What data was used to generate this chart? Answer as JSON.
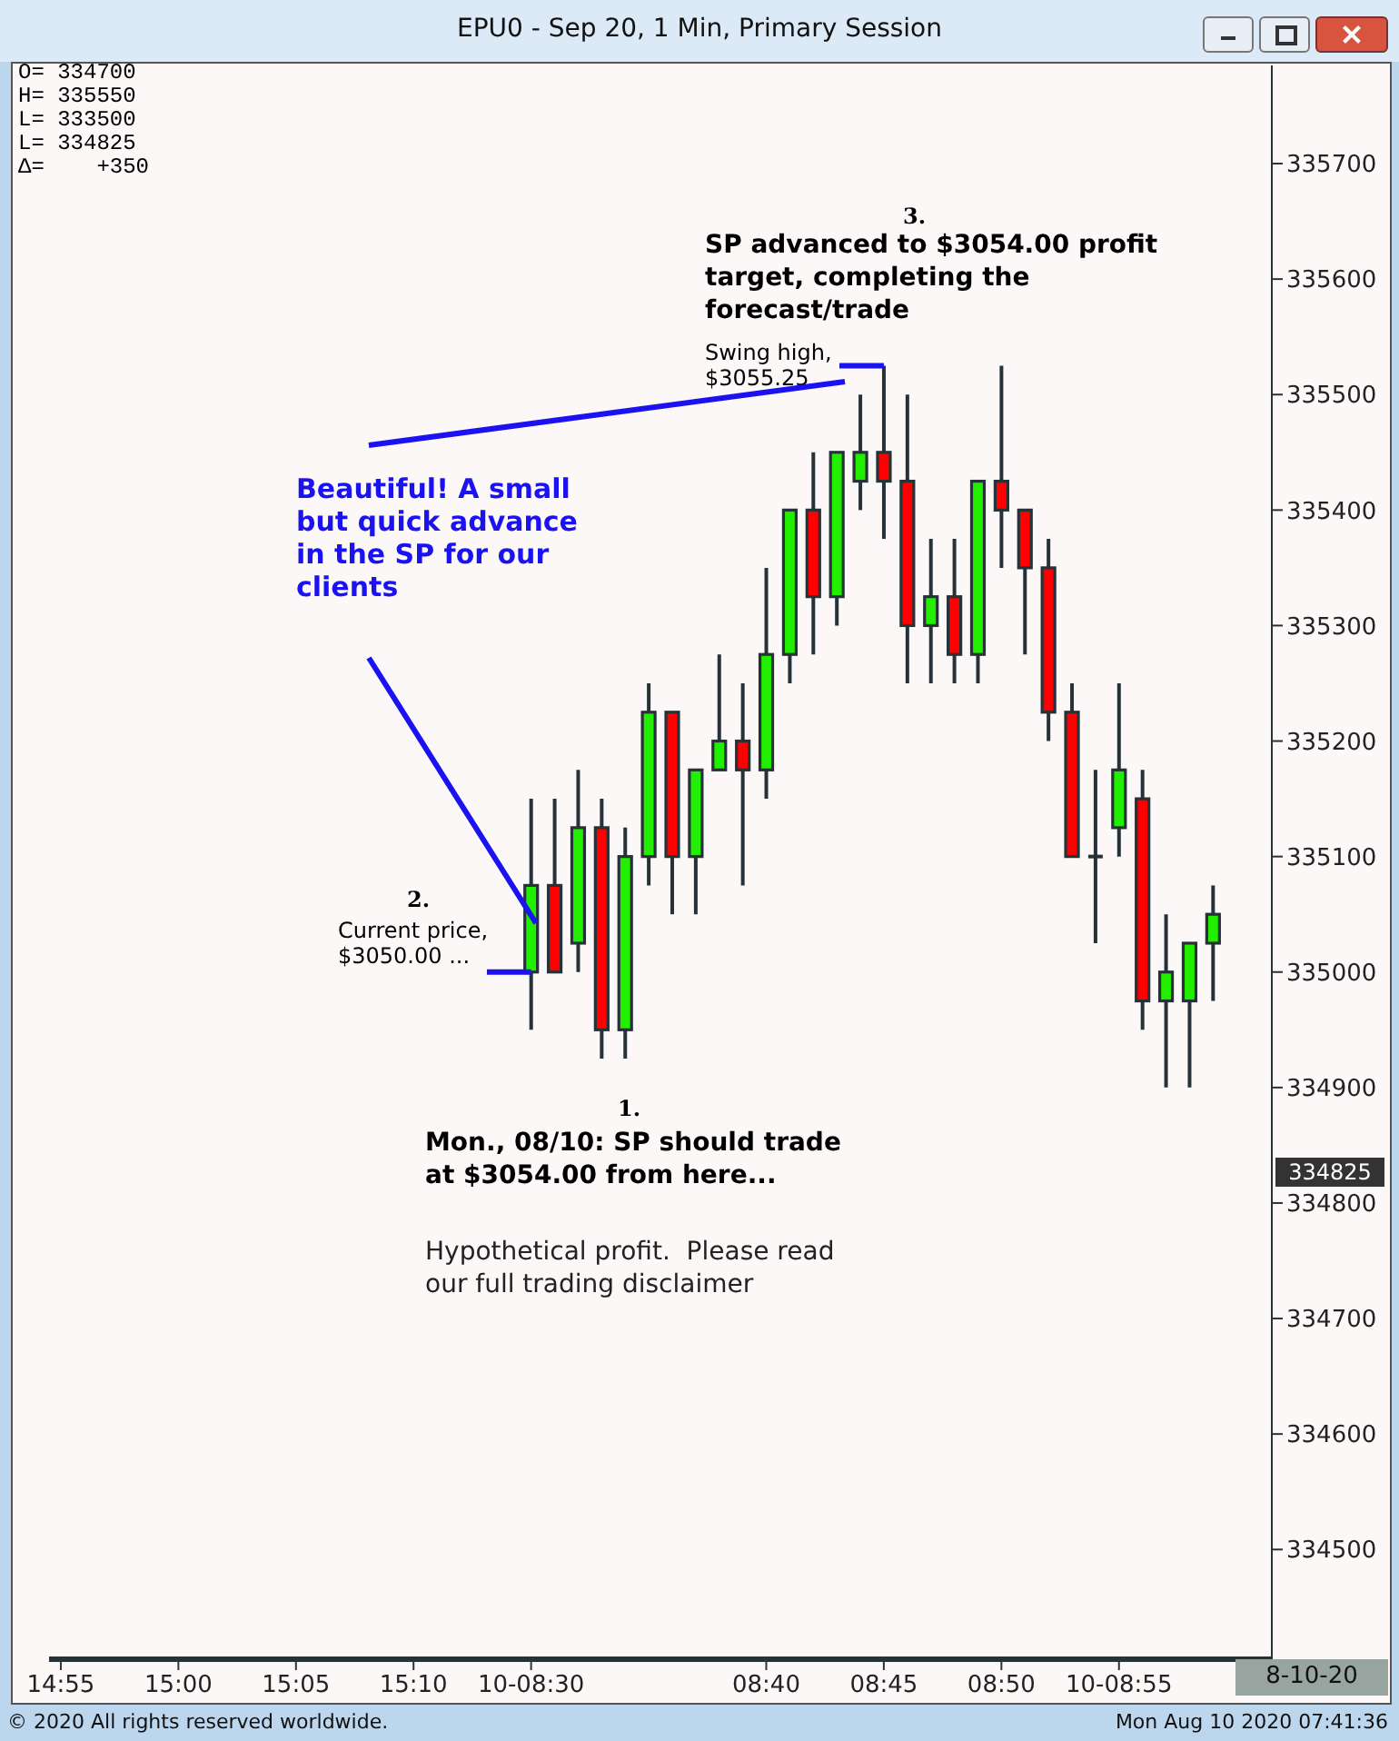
{
  "chart_data": {
    "type": "candlestick",
    "title": "EPU0 - Sep 20, 1 Min, Primary Session",
    "categories": [
      "14:55",
      null,
      null,
      null,
      null,
      "15:00",
      null,
      null,
      null,
      null,
      "15:05",
      null,
      null,
      null,
      null,
      "15:10",
      null,
      null,
      null,
      null,
      "10-08:30",
      null,
      null,
      null,
      null,
      null,
      null,
      null,
      null,
      null,
      "08:40",
      null,
      null,
      null,
      null,
      "08:45",
      null,
      null,
      null,
      null,
      "08:50",
      null,
      null,
      null,
      null,
      "10-08:55",
      null,
      null,
      null,
      null,
      null,
      null
    ],
    "ohlc": [
      null,
      null,
      null,
      null,
      null,
      null,
      null,
      null,
      null,
      null,
      null,
      null,
      null,
      null,
      null,
      null,
      null,
      null,
      null,
      null,
      [
        335000,
        335150,
        334950,
        335075
      ],
      [
        335075,
        335150,
        335000,
        335000
      ],
      [
        335025,
        335175,
        335000,
        335125
      ],
      [
        335125,
        335150,
        334925,
        334950
      ],
      [
        334950,
        335125,
        334925,
        335100
      ],
      [
        335100,
        335250,
        335075,
        335225
      ],
      [
        335225,
        335225,
        335050,
        335100
      ],
      [
        335100,
        335175,
        335050,
        335175
      ],
      [
        335175,
        335275,
        335175,
        335200
      ],
      [
        335200,
        335250,
        335075,
        335175
      ],
      [
        335175,
        335350,
        335150,
        335275
      ],
      [
        335275,
        335400,
        335250,
        335400
      ],
      [
        335400,
        335450,
        335275,
        335325
      ],
      [
        335325,
        335450,
        335300,
        335450
      ],
      [
        335425,
        335500,
        335400,
        335450
      ],
      [
        335450,
        335525,
        335375,
        335425
      ],
      [
        335425,
        335500,
        335250,
        335300
      ],
      [
        335300,
        335375,
        335250,
        335325
      ],
      [
        335325,
        335375,
        335250,
        335275
      ],
      [
        335275,
        335425,
        335250,
        335425
      ],
      [
        335425,
        335525,
        335350,
        335400
      ],
      [
        335400,
        335400,
        335275,
        335350
      ],
      [
        335350,
        335375,
        335200,
        335225
      ],
      [
        335225,
        335250,
        335100,
        335100
      ],
      [
        335100,
        335175,
        335025,
        335100
      ],
      [
        335125,
        335250,
        335100,
        335175
      ],
      [
        335150,
        335175,
        334950,
        334975
      ],
      [
        334975,
        335050,
        334900,
        335000
      ],
      [
        334975,
        335025,
        334900,
        335025
      ],
      [
        335025,
        335075,
        334975,
        335050
      ],
      null,
      null
    ],
    "colors": [
      null,
      null,
      null,
      null,
      null,
      null,
      null,
      null,
      null,
      null,
      null,
      null,
      null,
      null,
      null,
      null,
      null,
      null,
      null,
      null,
      "#22ee00",
      "#ff0000",
      "#22ee00",
      "#ff0000",
      "#22ee00",
      "#22ee00",
      "#ff0000",
      "#22ee00",
      "#22ee00",
      "#ff0000",
      "#22ee00",
      "#22ee00",
      "#ff0000",
      "#22ee00",
      "#22ee00",
      "#ff0000",
      "#ff0000",
      "#22ee00",
      "#ff0000",
      "#22ee00",
      "#ff0000",
      "#ff0000",
      "#ff0000",
      "#ff0000",
      "#263238",
      "#22ee00",
      "#ff0000",
      "#22ee00",
      "#22ee00",
      "#22ee00",
      null,
      null
    ],
    "ylim": [
      334405,
      335785
    ],
    "yticks": [
      334500,
      334600,
      334700,
      334800,
      334900,
      335000,
      335100,
      335200,
      335300,
      335400,
      335500,
      335600,
      335700
    ],
    "annotations": [
      "O= 334700",
      "H= 335550",
      "L= 333500",
      "L= 334825",
      "Δ=    +350",
      "3.",
      "SP advanced to $3054.00 profit target, completing the forecast/trade",
      {
        "text": "Swing high, $3055.25",
        "x": "08:45",
        "y": 335525
      },
      "Beautiful! A small but quick advance in the SP for our clients",
      "2.",
      {
        "text": "Current price, $3050.00 ...",
        "x": "10-08:30",
        "y": 335000
      },
      "1.",
      "Mon., 08/10: SP should trade at $3054.00 from here...",
      "Hypothetical profit.  Please read our full trading disclaimer",
      "334825",
      "8-10-20",
      "© 2020 All rights reserved worldwide.",
      "Mon Aug 10 2020 07:41:36"
    ]
  }
}
